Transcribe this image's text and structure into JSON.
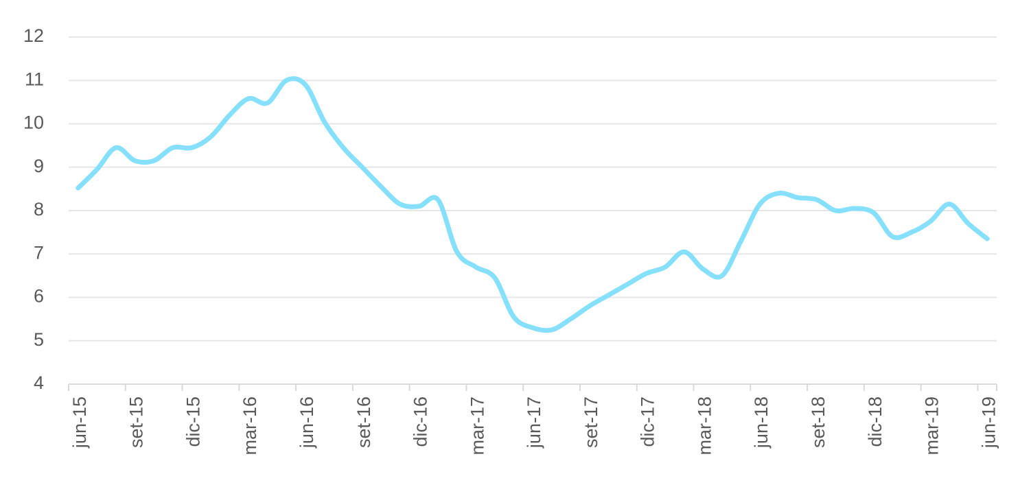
{
  "chart_data": {
    "type": "line",
    "categories": [
      "jun-15",
      null,
      null,
      "set-15",
      null,
      null,
      "dic-15",
      null,
      null,
      "mar-16",
      null,
      null,
      "jun-16",
      null,
      null,
      "set-16",
      null,
      null,
      "dic-16",
      null,
      null,
      "mar-17",
      null,
      null,
      "jun-17",
      null,
      null,
      "set-17",
      null,
      null,
      "dic-17",
      null,
      null,
      "mar-18",
      null,
      null,
      "jun-18",
      null,
      null,
      "set-18",
      null,
      null,
      "dic-18",
      null,
      null,
      "mar-19",
      null,
      null,
      "jun-19"
    ],
    "series": [
      {
        "color": "#87e0fb",
        "values": [
          8.52,
          8.95,
          9.45,
          9.15,
          9.15,
          9.45,
          9.45,
          9.7,
          10.2,
          10.58,
          10.48,
          11.0,
          10.9,
          10.05,
          9.45,
          9.0,
          8.55,
          8.15,
          8.1,
          8.25,
          7.05,
          6.7,
          6.45,
          5.55,
          5.3,
          5.25,
          5.5,
          5.8,
          6.05,
          6.3,
          6.55,
          6.7,
          7.05,
          6.65,
          6.5,
          7.3,
          8.15,
          8.4,
          8.3,
          8.25,
          8.0,
          8.05,
          7.95,
          7.4,
          7.5,
          7.75,
          8.15,
          7.7,
          7.35
        ]
      }
    ],
    "ylim": [
      4,
      12
    ],
    "yticks": [
      4,
      5,
      6,
      7,
      8,
      9,
      10,
      11,
      12
    ],
    "grid": true
  }
}
